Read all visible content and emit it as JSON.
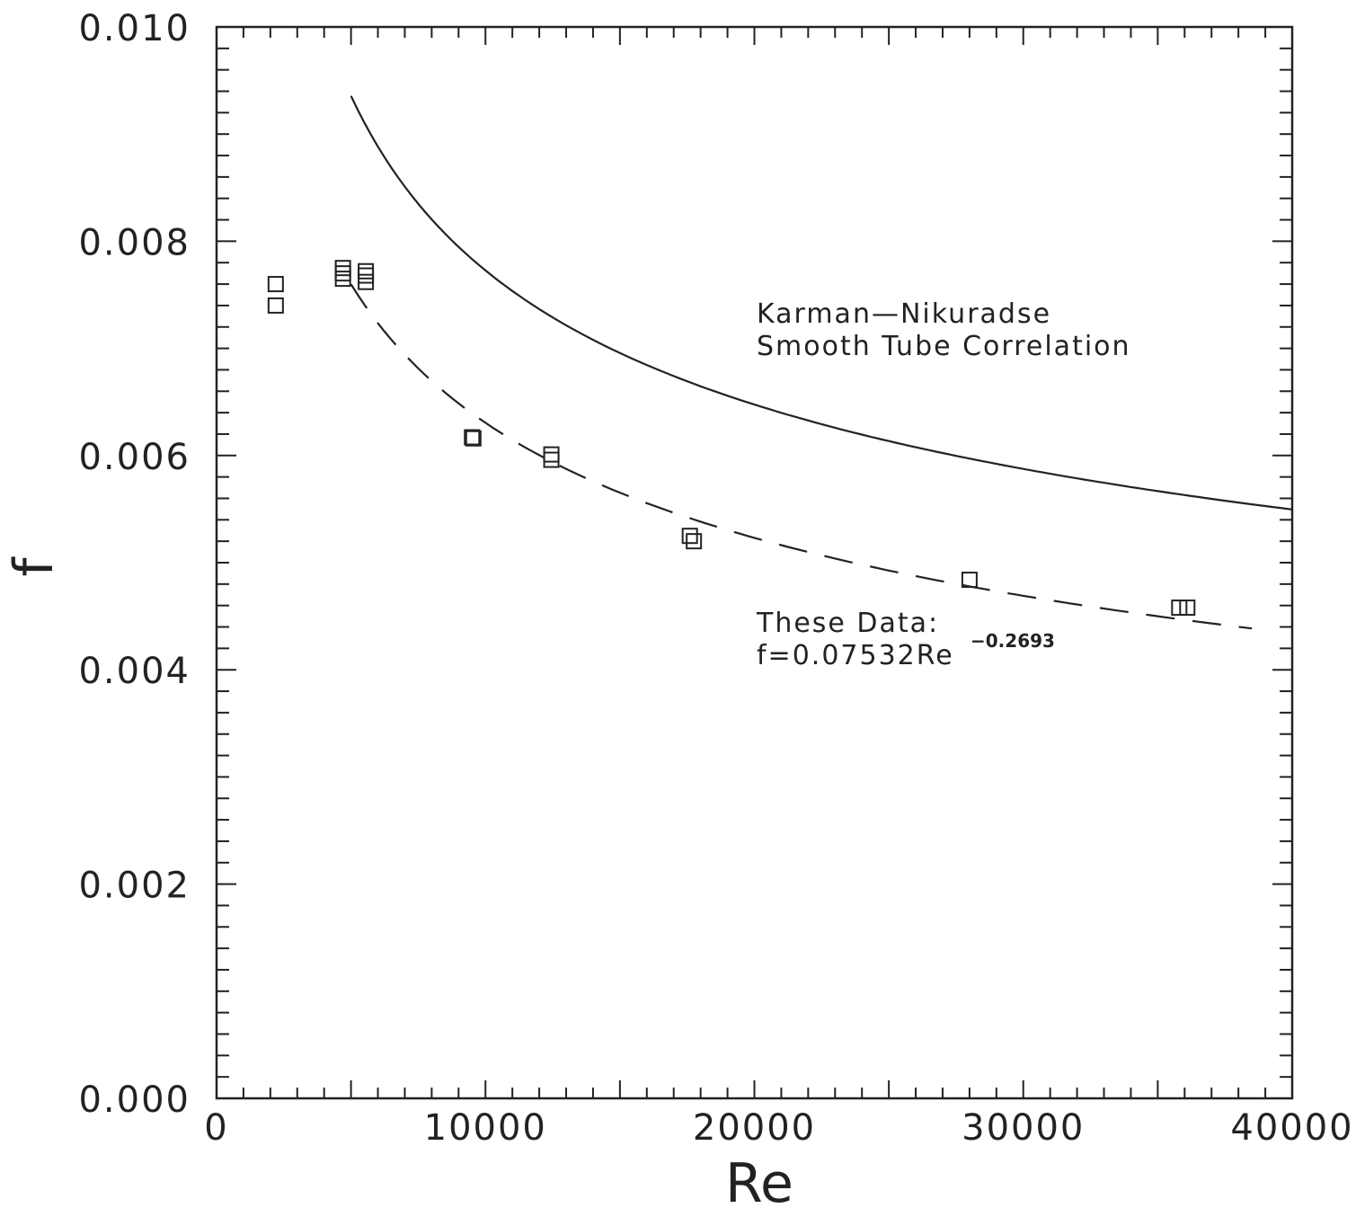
{
  "chart_data": {
    "type": "scatter",
    "xlabel": "Re",
    "ylabel": "f",
    "xlim": [
      0,
      40000
    ],
    "ylim": [
      0,
      0.01
    ],
    "x_ticks": [
      "0",
      "10000",
      "20000",
      "30000",
      "40000"
    ],
    "y_ticks": [
      "0.000",
      "0.002",
      "0.004",
      "0.006",
      "0.008",
      "0.010"
    ],
    "grid": false,
    "series": [
      {
        "kind": "markers",
        "marker": "square",
        "points": [
          [
            2200,
            0.0076
          ],
          [
            2200,
            0.0074
          ],
          [
            4700,
            0.00775
          ],
          [
            4700,
            0.0077
          ],
          [
            4700,
            0.00765
          ],
          [
            5550,
            0.00772
          ],
          [
            5550,
            0.00768
          ],
          [
            5550,
            0.00762
          ],
          [
            9500,
            0.00617
          ],
          [
            9550,
            0.00616
          ],
          [
            12450,
            0.00601
          ],
          [
            12450,
            0.00596
          ],
          [
            17600,
            0.00525
          ],
          [
            17750,
            0.0052
          ],
          [
            28000,
            0.00484
          ],
          [
            35800,
            0.00458
          ],
          [
            36100,
            0.00458
          ]
        ]
      },
      {
        "kind": "curve",
        "style": "solid",
        "x_start": 5000,
        "x_end": 40000
      },
      {
        "kind": "curve",
        "style": "dashed",
        "coefficient": 0.07532,
        "exponent": -0.2693,
        "x_start": 5000,
        "x_end": 38500
      }
    ],
    "annotations": [
      {
        "lines": [
          "Karman—Nikuradse",
          "Smooth  Tube  Correlation"
        ]
      },
      {
        "lines": [
          "These  Data:",
          "f=0.07532Re"
        ],
        "superscript": "−0.2693"
      }
    ]
  }
}
